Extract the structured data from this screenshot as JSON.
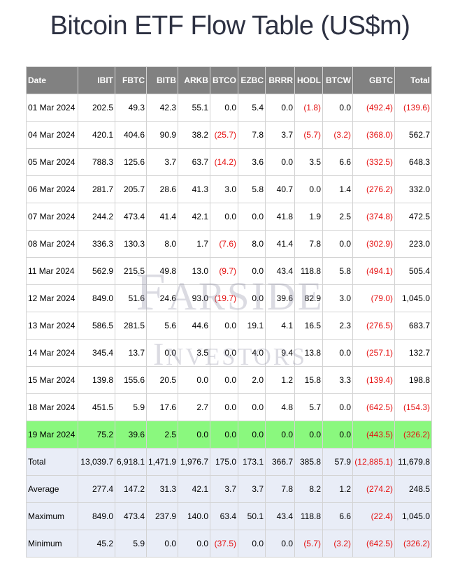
{
  "title": "Bitcoin ETF Flow Table (US$m)",
  "columns": [
    "Date",
    "IBIT",
    "FBTC",
    "BITB",
    "ARKB",
    "BTCO",
    "EZBC",
    "BRRR",
    "HODL",
    "BTCW",
    "GBTC",
    "Total"
  ],
  "rows": [
    {
      "type": "daily",
      "highlight": false,
      "cells": [
        "01 Mar 2024",
        "202.5",
        "49.3",
        "42.3",
        "55.1",
        "0.0",
        "5.4",
        "0.0",
        "(1.8)",
        "0.0",
        "(492.4)",
        "(139.6)"
      ]
    },
    {
      "type": "daily",
      "highlight": false,
      "cells": [
        "04 Mar 2024",
        "420.1",
        "404.6",
        "90.9",
        "38.2",
        "(25.7)",
        "7.8",
        "3.7",
        "(5.7)",
        "(3.2)",
        "(368.0)",
        "562.7"
      ]
    },
    {
      "type": "daily",
      "highlight": false,
      "cells": [
        "05 Mar 2024",
        "788.3",
        "125.6",
        "3.7",
        "63.7",
        "(14.2)",
        "3.6",
        "0.0",
        "3.5",
        "6.6",
        "(332.5)",
        "648.3"
      ]
    },
    {
      "type": "daily",
      "highlight": false,
      "cells": [
        "06 Mar 2024",
        "281.7",
        "205.7",
        "28.6",
        "41.3",
        "3.0",
        "5.8",
        "40.7",
        "0.0",
        "1.4",
        "(276.2)",
        "332.0"
      ]
    },
    {
      "type": "daily",
      "highlight": false,
      "cells": [
        "07 Mar 2024",
        "244.2",
        "473.4",
        "41.4",
        "42.1",
        "0.0",
        "0.0",
        "41.8",
        "1.9",
        "2.5",
        "(374.8)",
        "472.5"
      ]
    },
    {
      "type": "daily",
      "highlight": false,
      "cells": [
        "08 Mar 2024",
        "336.3",
        "130.3",
        "8.0",
        "1.7",
        "(7.6)",
        "8.0",
        "41.4",
        "7.8",
        "0.0",
        "(302.9)",
        "223.0"
      ]
    },
    {
      "type": "daily",
      "highlight": false,
      "cells": [
        "11 Mar 2024",
        "562.9",
        "215.5",
        "49.8",
        "13.0",
        "(9.7)",
        "0.0",
        "43.4",
        "118.8",
        "5.8",
        "(494.1)",
        "505.4"
      ]
    },
    {
      "type": "daily",
      "highlight": false,
      "cells": [
        "12 Mar 2024",
        "849.0",
        "51.6",
        "24.6",
        "93.0",
        "(19.7)",
        "0.0",
        "39.6",
        "82.9",
        "3.0",
        "(79.0)",
        "1,045.0"
      ]
    },
    {
      "type": "daily",
      "highlight": false,
      "cells": [
        "13 Mar 2024",
        "586.5",
        "281.5",
        "5.6",
        "44.6",
        "0.0",
        "19.1",
        "4.1",
        "16.5",
        "2.3",
        "(276.5)",
        "683.7"
      ]
    },
    {
      "type": "daily",
      "highlight": false,
      "cells": [
        "14 Mar 2024",
        "345.4",
        "13.7",
        "0.0",
        "3.5",
        "0.0",
        "4.0",
        "9.4",
        "13.8",
        "0.0",
        "(257.1)",
        "132.7"
      ]
    },
    {
      "type": "daily",
      "highlight": false,
      "cells": [
        "15 Mar 2024",
        "139.8",
        "155.6",
        "20.5",
        "0.0",
        "0.0",
        "2.0",
        "1.2",
        "15.8",
        "3.3",
        "(139.4)",
        "198.8"
      ]
    },
    {
      "type": "daily",
      "highlight": false,
      "cells": [
        "18 Mar 2024",
        "451.5",
        "5.9",
        "17.6",
        "2.7",
        "0.0",
        "0.0",
        "4.8",
        "5.7",
        "0.0",
        "(642.5)",
        "(154.3)"
      ]
    },
    {
      "type": "daily",
      "highlight": true,
      "cells": [
        "19 Mar 2024",
        "75.2",
        "39.6",
        "2.5",
        "0.0",
        "0.0",
        "0.0",
        "0.0",
        "0.0",
        "0.0",
        "(443.5)",
        "(326.2)"
      ]
    },
    {
      "type": "summary",
      "highlight": false,
      "cells": [
        "Total",
        "13,039.7",
        "6,918.1",
        "1,471.9",
        "1,976.7",
        "175.0",
        "173.1",
        "366.7",
        "385.8",
        "57.9",
        "(12,885.1)",
        "11,679.8"
      ]
    },
    {
      "type": "summary",
      "highlight": false,
      "cells": [
        "Average",
        "277.4",
        "147.2",
        "31.3",
        "42.1",
        "3.7",
        "3.7",
        "7.8",
        "8.2",
        "1.2",
        "(274.2)",
        "248.5"
      ]
    },
    {
      "type": "summary",
      "highlight": false,
      "cells": [
        "Maximum",
        "849.0",
        "473.4",
        "237.9",
        "140.0",
        "63.4",
        "50.1",
        "43.4",
        "118.8",
        "6.6",
        "(22.4)",
        "1,045.0"
      ]
    },
    {
      "type": "summary",
      "highlight": false,
      "cells": [
        "Minimum",
        "45.2",
        "5.9",
        "0.0",
        "0.0",
        "(37.5)",
        "0.0",
        "0.0",
        "(5.7)",
        "(3.2)",
        "(642.5)",
        "(326.2)"
      ]
    }
  ],
  "watermark": {
    "line1_first": "F",
    "line1_rest": "ARSIDE",
    "line2_first": "I",
    "line2_rest": "NVESTORS"
  },
  "colors": {
    "header_bg": "#818181",
    "negative": "#e51010",
    "highlight_row": "#8af87e",
    "summary_row": "#e9edf7",
    "title": "#2d3142"
  }
}
